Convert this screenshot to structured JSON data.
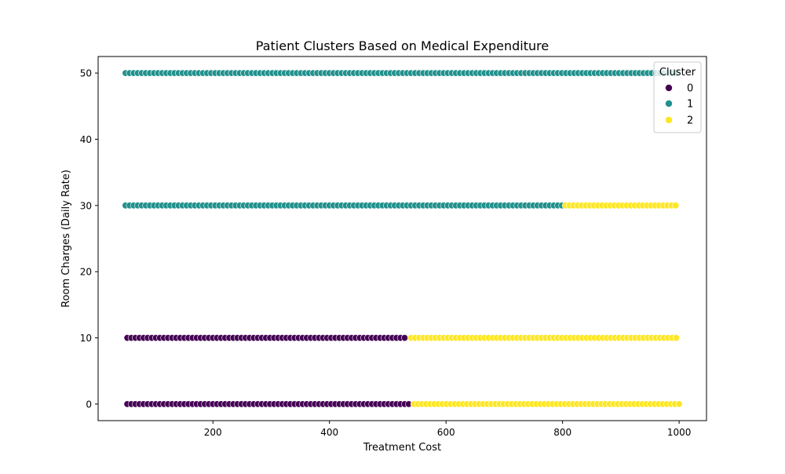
{
  "chart_data": {
    "type": "scatter",
    "title": "Patient Clusters Based on Medical Expenditure",
    "xlabel": "Treatment Cost",
    "ylabel": "Room Charges (Daily Rate)",
    "xlim": [
      3,
      1047
    ],
    "ylim": [
      -2.5,
      52.5
    ],
    "xticks": [
      200,
      400,
      600,
      800,
      1000
    ],
    "yticks": [
      0,
      10,
      20,
      30,
      40,
      50
    ],
    "grid": false,
    "legend": {
      "title": "Cluster",
      "placement": "top-right",
      "entries": [
        "0",
        "1",
        "2"
      ]
    },
    "colors": {
      "0": "#440154",
      "1": "#21918c",
      "2": "#fde725"
    },
    "point_stroke": "#ffffff",
    "series": [
      {
        "name": "0",
        "y_level": 0,
        "x_start": 53,
        "x_end": 540,
        "x_step": 7
      },
      {
        "name": "0",
        "y_level": 10,
        "x_start": 53,
        "x_end": 535,
        "x_step": 7
      },
      {
        "name": "1",
        "y_level": 30,
        "x_start": 50,
        "x_end": 800,
        "x_step": 7
      },
      {
        "name": "1",
        "y_level": 50,
        "x_start": 50,
        "x_end": 1000,
        "x_step": 7
      },
      {
        "name": "2",
        "y_level": 0,
        "x_start": 545,
        "x_end": 1000,
        "x_step": 7
      },
      {
        "name": "2",
        "y_level": 10,
        "x_start": 540,
        "x_end": 1000,
        "x_step": 7
      },
      {
        "name": "2",
        "y_level": 30,
        "x_start": 805,
        "x_end": 1000,
        "x_step": 7
      }
    ]
  }
}
